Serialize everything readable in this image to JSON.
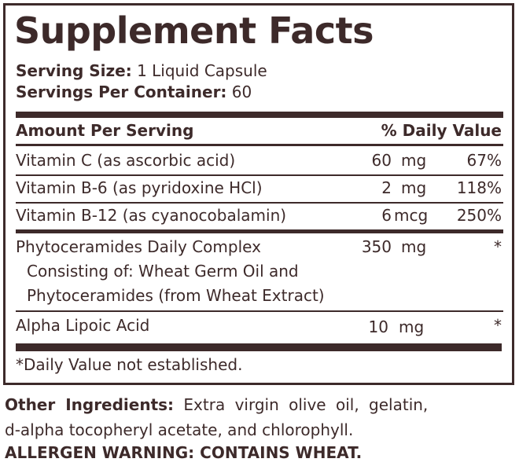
{
  "title": "Supplement Facts",
  "serving_size": {
    "label": "Serving Size:",
    "value": "1 Liquid Capsule"
  },
  "servings_per_container": {
    "label": "Servings Per Container:",
    "value": "60"
  },
  "header": {
    "amount": "Amount Per Serving",
    "dv": "% Daily Value"
  },
  "rows": [
    {
      "name": "Vitamin C (as ascorbic acid)",
      "amount": "60",
      "unit": "mg",
      "dv": "67%"
    },
    {
      "name": "Vitamin B-6 (as pyridoxine HCl)",
      "amount": "2",
      "unit": "mg",
      "dv": "118%"
    },
    {
      "name": "Vitamin B-12 (as cyanocobalamin)",
      "amount": "6",
      "unit": "mcg",
      "dv": "250%"
    },
    {
      "name": "Phytoceramides Daily Complex",
      "sub1": "Consisting of: Wheat Germ Oil and",
      "sub2": "Phytoceramides (from Wheat Extract)",
      "amount": "350",
      "unit": "mg",
      "dv": "*"
    },
    {
      "name": "Alpha Lipoic Acid",
      "amount": "10",
      "unit": "mg",
      "dv": "*"
    }
  ],
  "footnote": "*Daily Value not established.",
  "other_ingredients": {
    "label": "Other Ingredients:",
    "line1": "Extra virgin olive oil, gelatin,",
    "line2": "d-alpha tocopheryl acetate, and chlorophyll."
  },
  "allergen_warning": "ALLERGEN WARNING: CONTAINS WHEAT.",
  "colors": {
    "text": "#3d2a2a",
    "background": "#ffffff"
  }
}
